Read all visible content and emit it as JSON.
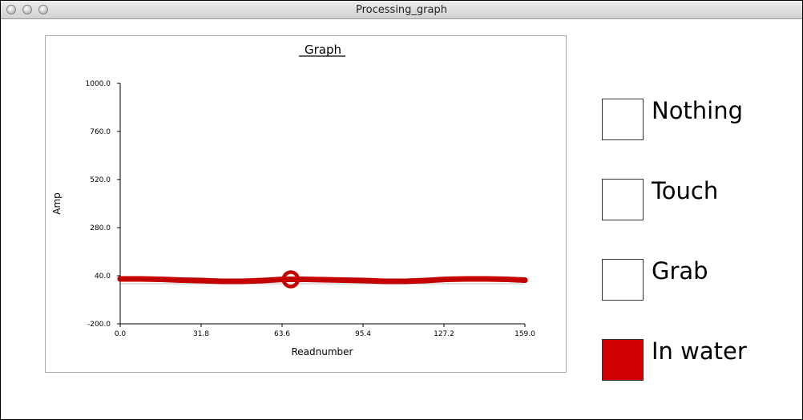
{
  "window": {
    "title": "Processing_graph"
  },
  "chart_data": {
    "type": "line",
    "title": "Graph",
    "xlabel": "Readnumber",
    "ylabel": "Amp",
    "xlim": [
      0,
      159
    ],
    "ylim": [
      -200,
      1000
    ],
    "x_ticks": [
      "0.0",
      "31.8",
      "63.6",
      "95.4",
      "127.2",
      "159.0"
    ],
    "y_ticks": [
      "-200.0",
      "40.0",
      "280.0",
      "520.0",
      "760.0",
      "1000.0"
    ],
    "baseline_value": 0,
    "marker": {
      "x": 67,
      "y": 22
    },
    "series_color": "#c40000",
    "series": [
      {
        "x": [
          0,
          8,
          16,
          24,
          32,
          40,
          48,
          56,
          64,
          72,
          80,
          88,
          96,
          104,
          112,
          120,
          128,
          136,
          144,
          152,
          159
        ],
        "values": [
          24,
          24,
          22,
          18,
          16,
          12,
          12,
          16,
          22,
          22,
          20,
          18,
          16,
          12,
          12,
          16,
          22,
          24,
          24,
          22,
          18
        ]
      }
    ]
  },
  "legend": {
    "items": [
      {
        "label": "Nothing",
        "color": "#ffffff"
      },
      {
        "label": "Touch",
        "color": "#ffffff"
      },
      {
        "label": "Grab",
        "color": "#ffffff"
      },
      {
        "label": "In water",
        "color": "#d10000"
      }
    ]
  }
}
